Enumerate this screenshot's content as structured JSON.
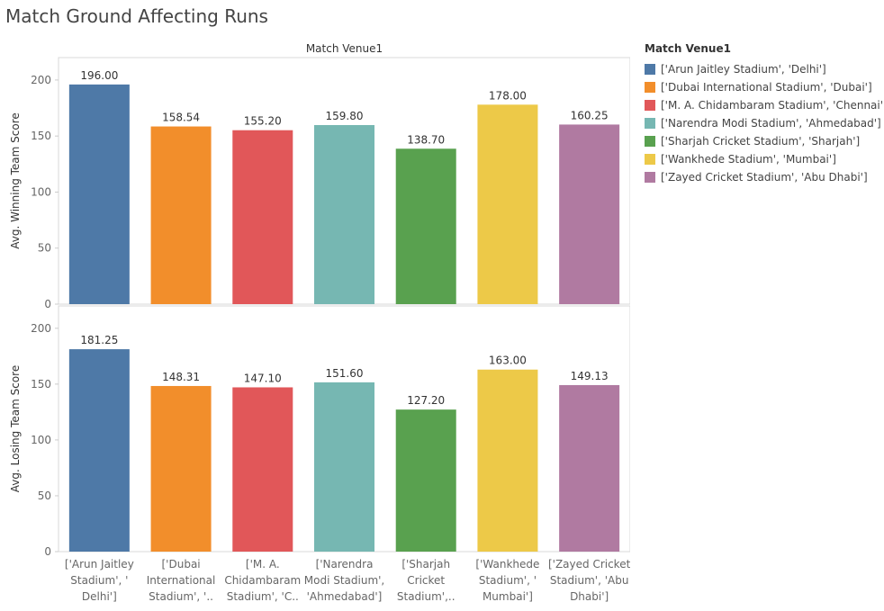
{
  "title": "Match Ground Affecting Runs",
  "chart_data": {
    "type": "bar",
    "column_header": "Match Venue1",
    "categories": [
      "['Arun Jaitley Stadium', 'Delhi']",
      "['Dubai International Stadium', 'Dubai']",
      "['M. A. Chidambaram Stadium', 'Chennai']",
      "['Narendra Modi Stadium', 'Ahmedabad']",
      "['Sharjah Cricket Stadium', 'Sharjah']",
      "['Wankhede Stadium', 'Mumbai']",
      "['Zayed Cricket Stadium', 'Abu Dhabi']"
    ],
    "axis_tick_labels": [
      [
        "['Arun Jaitley",
        "Stadium', '",
        "Delhi']"
      ],
      [
        "['Dubai",
        "International",
        "Stadium', '.."
      ],
      [
        "['M. A.",
        "Chidambaram",
        "Stadium', 'C.."
      ],
      [
        "['Narendra",
        "Modi Stadium',",
        "'Ahmedabad']"
      ],
      [
        "['Sharjah",
        "Cricket",
        "Stadium',.."
      ],
      [
        "['Wankhede",
        "Stadium', '",
        "Mumbai']"
      ],
      [
        "['Zayed Cricket",
        "Stadium', 'Abu",
        "Dhabi']"
      ]
    ],
    "colors": [
      "#4e79a7",
      "#f28e2b",
      "#e15759",
      "#76b7b2",
      "#59a14f",
      "#edc948",
      "#b07aa1"
    ],
    "series": [
      {
        "name": "Avg. Winning Team Score",
        "values": [
          196.0,
          158.54,
          155.2,
          159.8,
          138.7,
          178.0,
          160.25
        ],
        "labels": [
          "196.00",
          "158.54",
          "155.20",
          "159.80",
          "138.70",
          "178.00",
          "160.25"
        ],
        "ylim": [
          0,
          220
        ],
        "yticks": [
          0,
          50,
          100,
          150,
          200
        ]
      },
      {
        "name": "Avg. Losing Team Score",
        "values": [
          181.25,
          148.31,
          147.1,
          151.6,
          127.2,
          163.0,
          149.13
        ],
        "labels": [
          "181.25",
          "148.31",
          "147.10",
          "151.60",
          "127.20",
          "163.00",
          "149.13"
        ],
        "ylim": [
          0,
          220
        ],
        "yticks": [
          0,
          50,
          100,
          150,
          200
        ]
      }
    ],
    "legend": {
      "title": "Match Venue1",
      "position": "right",
      "items": [
        "['Arun Jaitley Stadium', 'Delhi']",
        "['Dubai International Stadium', 'Dubai']",
        "['M. A. Chidambaram Stadium', 'Chennai']",
        "['Narendra Modi Stadium', 'Ahmedabad']",
        "['Sharjah Cricket Stadium', 'Sharjah']",
        "['Wankhede Stadium', 'Mumbai']",
        "['Zayed Cricket Stadium', 'Abu Dhabi']"
      ]
    },
    "grid": false
  }
}
